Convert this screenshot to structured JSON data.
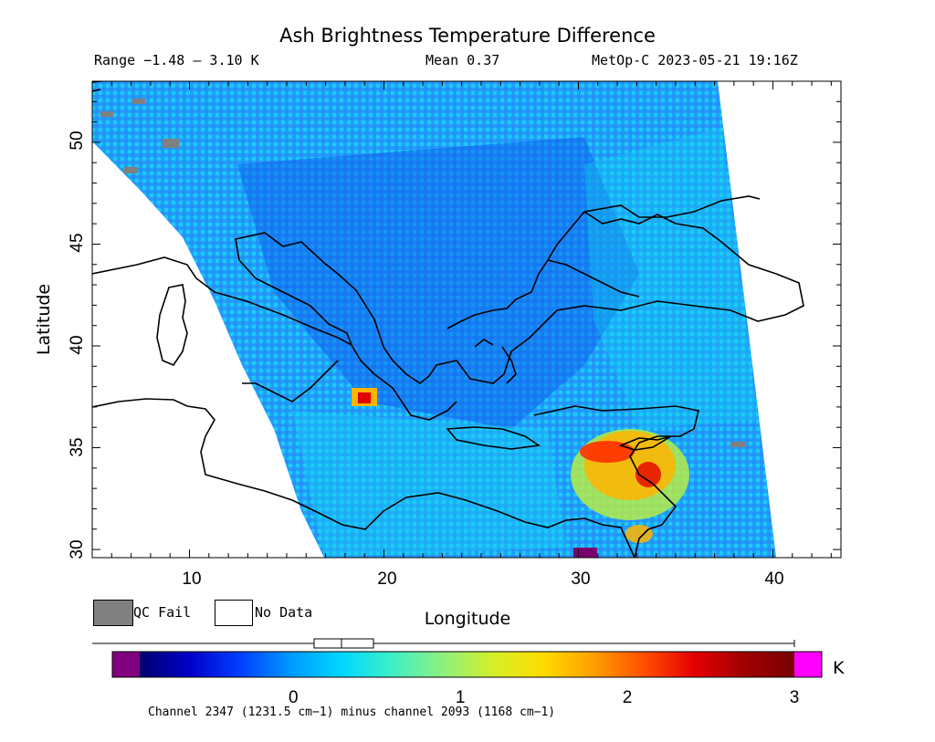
{
  "title": "Ash Brightness Temperature Difference",
  "range_text": "Range −1.48 – 3.10 K",
  "mean_text": "Mean 0.37",
  "source_text": "MetOp-C 2023-05-21 19:16Z",
  "axes": {
    "xlabel": "Longitude",
    "ylabel": "Latitude",
    "x_ticks": [
      "10",
      "20",
      "30",
      "40"
    ],
    "y_ticks": [
      "30",
      "35",
      "40",
      "45",
      "50"
    ],
    "lon_range": [
      5,
      43.5
    ],
    "lat_range": [
      29.6,
      53
    ]
  },
  "legend": {
    "qc_fail": "QC Fail",
    "no_data": "No Data",
    "qc_fail_color": "#808080",
    "no_data_color": "#ffffff"
  },
  "colorbar": {
    "unit": "K",
    "ticks": [
      "0",
      "1",
      "2",
      "3"
    ],
    "tick_values": [
      0,
      1,
      2,
      3
    ],
    "under_color": "#800080",
    "over_color": "#ff00ff",
    "colors": [
      "#00006e",
      "#0000c8",
      "#0040ff",
      "#0099ff",
      "#00d7ff",
      "#3cf0c8",
      "#8cf080",
      "#d2f028",
      "#ffdc00",
      "#ffa000",
      "#ff5000",
      "#e60000",
      "#a00000",
      "#780000"
    ]
  },
  "footnote": "Channel 2347 (1231.5 cm−1) minus channel 2093 (1168 cm−1)",
  "map_colors": {
    "background": "#00a8ff",
    "hotspot_plume": "#ffb400",
    "hotspot_core": "#ff3000",
    "hotspot_small": "#ff5000",
    "purple_spot": "#7a0070"
  }
}
